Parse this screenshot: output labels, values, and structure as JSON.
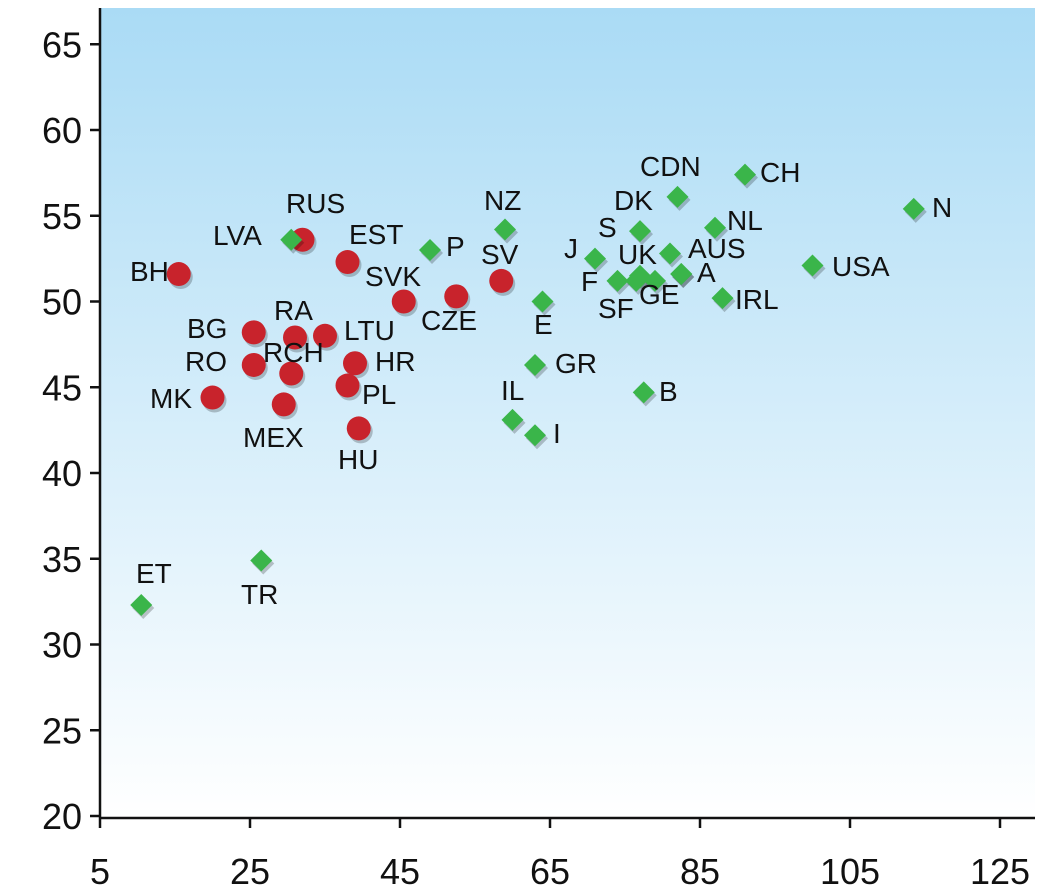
{
  "chart_data": {
    "type": "scatter",
    "title": "",
    "xlabel": "",
    "ylabel": "",
    "xlim": [
      5,
      128
    ],
    "ylim": [
      20,
      67
    ],
    "x_ticks": [
      5,
      25,
      45,
      65,
      85,
      105,
      125
    ],
    "y_ticks": [
      20,
      25,
      30,
      35,
      40,
      45,
      50,
      55,
      60,
      65
    ],
    "grid": false,
    "legend": "none",
    "colors": {
      "red": "#c8232c",
      "green": "#3ab54a"
    },
    "series": [
      {
        "marker": "circle",
        "color": "#c8232c",
        "points": [
          {
            "label": "BH",
            "x": 15.5,
            "y": 51.6
          },
          {
            "label": "RUS",
            "x": 32.0,
            "y": 53.6
          },
          {
            "label": "EST",
            "x": 38.0,
            "y": 52.3
          },
          {
            "label": "SVK",
            "x": 45.5,
            "y": 50.0
          },
          {
            "label": "CZE",
            "x": 52.5,
            "y": 50.3
          },
          {
            "label": "SV",
            "x": 58.5,
            "y": 51.2
          },
          {
            "label": "BG",
            "x": 25.5,
            "y": 48.2
          },
          {
            "label": "RA",
            "x": 31.0,
            "y": 47.9
          },
          {
            "label": "LTU",
            "x": 35.0,
            "y": 48.0
          },
          {
            "label": "RO",
            "x": 25.5,
            "y": 46.3
          },
          {
            "label": "RCH",
            "x": 30.5,
            "y": 45.8
          },
          {
            "label": "HR",
            "x": 39.0,
            "y": 46.4
          },
          {
            "label": "PL",
            "x": 38.0,
            "y": 45.1
          },
          {
            "label": "MK",
            "x": 20.0,
            "y": 44.4
          },
          {
            "label": "MEX",
            "x": 29.5,
            "y": 44.0
          },
          {
            "label": "HU",
            "x": 39.5,
            "y": 42.6
          }
        ]
      },
      {
        "marker": "diamond",
        "color": "#3ab54a",
        "points": [
          {
            "label": "LVA",
            "x": 30.5,
            "y": 53.6
          },
          {
            "label": "P",
            "x": 49.0,
            "y": 53.0
          },
          {
            "label": "NZ",
            "x": 59.0,
            "y": 54.2
          },
          {
            "label": "E",
            "x": 64.0,
            "y": 50.0
          },
          {
            "label": "J",
            "x": 71.0,
            "y": 52.5
          },
          {
            "label": "F",
            "x": 74.0,
            "y": 51.2
          },
          {
            "label": "S",
            "x": 77.0,
            "y": 54.1
          },
          {
            "label": "UK",
            "x": 77.0,
            "y": 51.5
          },
          {
            "label": "SF",
            "x": 76.5,
            "y": 51.2
          },
          {
            "label": "DK",
            "x": 82.0,
            "y": 56.1
          },
          {
            "label": "CDN",
            "x": 81.0,
            "y": 52.8
          },
          {
            "label": "AUS",
            "x": 82.5,
            "y": 51.6
          },
          {
            "label": "A",
            "x": 82.5,
            "y": 51.6
          },
          {
            "label": "GE",
            "x": 79.0,
            "y": 51.2
          },
          {
            "label": "NL",
            "x": 87.0,
            "y": 54.3
          },
          {
            "label": "CH",
            "x": 91.0,
            "y": 57.4
          },
          {
            "label": "IRL",
            "x": 88.0,
            "y": 50.2
          },
          {
            "label": "USA",
            "x": 100.0,
            "y": 52.1
          },
          {
            "label": "N",
            "x": 113.5,
            "y": 55.4
          },
          {
            "label": "GR",
            "x": 63.0,
            "y": 46.3
          },
          {
            "label": "B",
            "x": 77.5,
            "y": 44.7
          },
          {
            "label": "IL",
            "x": 60.0,
            "y": 43.1
          },
          {
            "label": "I",
            "x": 63.0,
            "y": 42.2
          },
          {
            "label": "ET",
            "x": 10.5,
            "y": 32.3
          },
          {
            "label": "TR",
            "x": 26.5,
            "y": 34.9
          }
        ]
      }
    ]
  }
}
